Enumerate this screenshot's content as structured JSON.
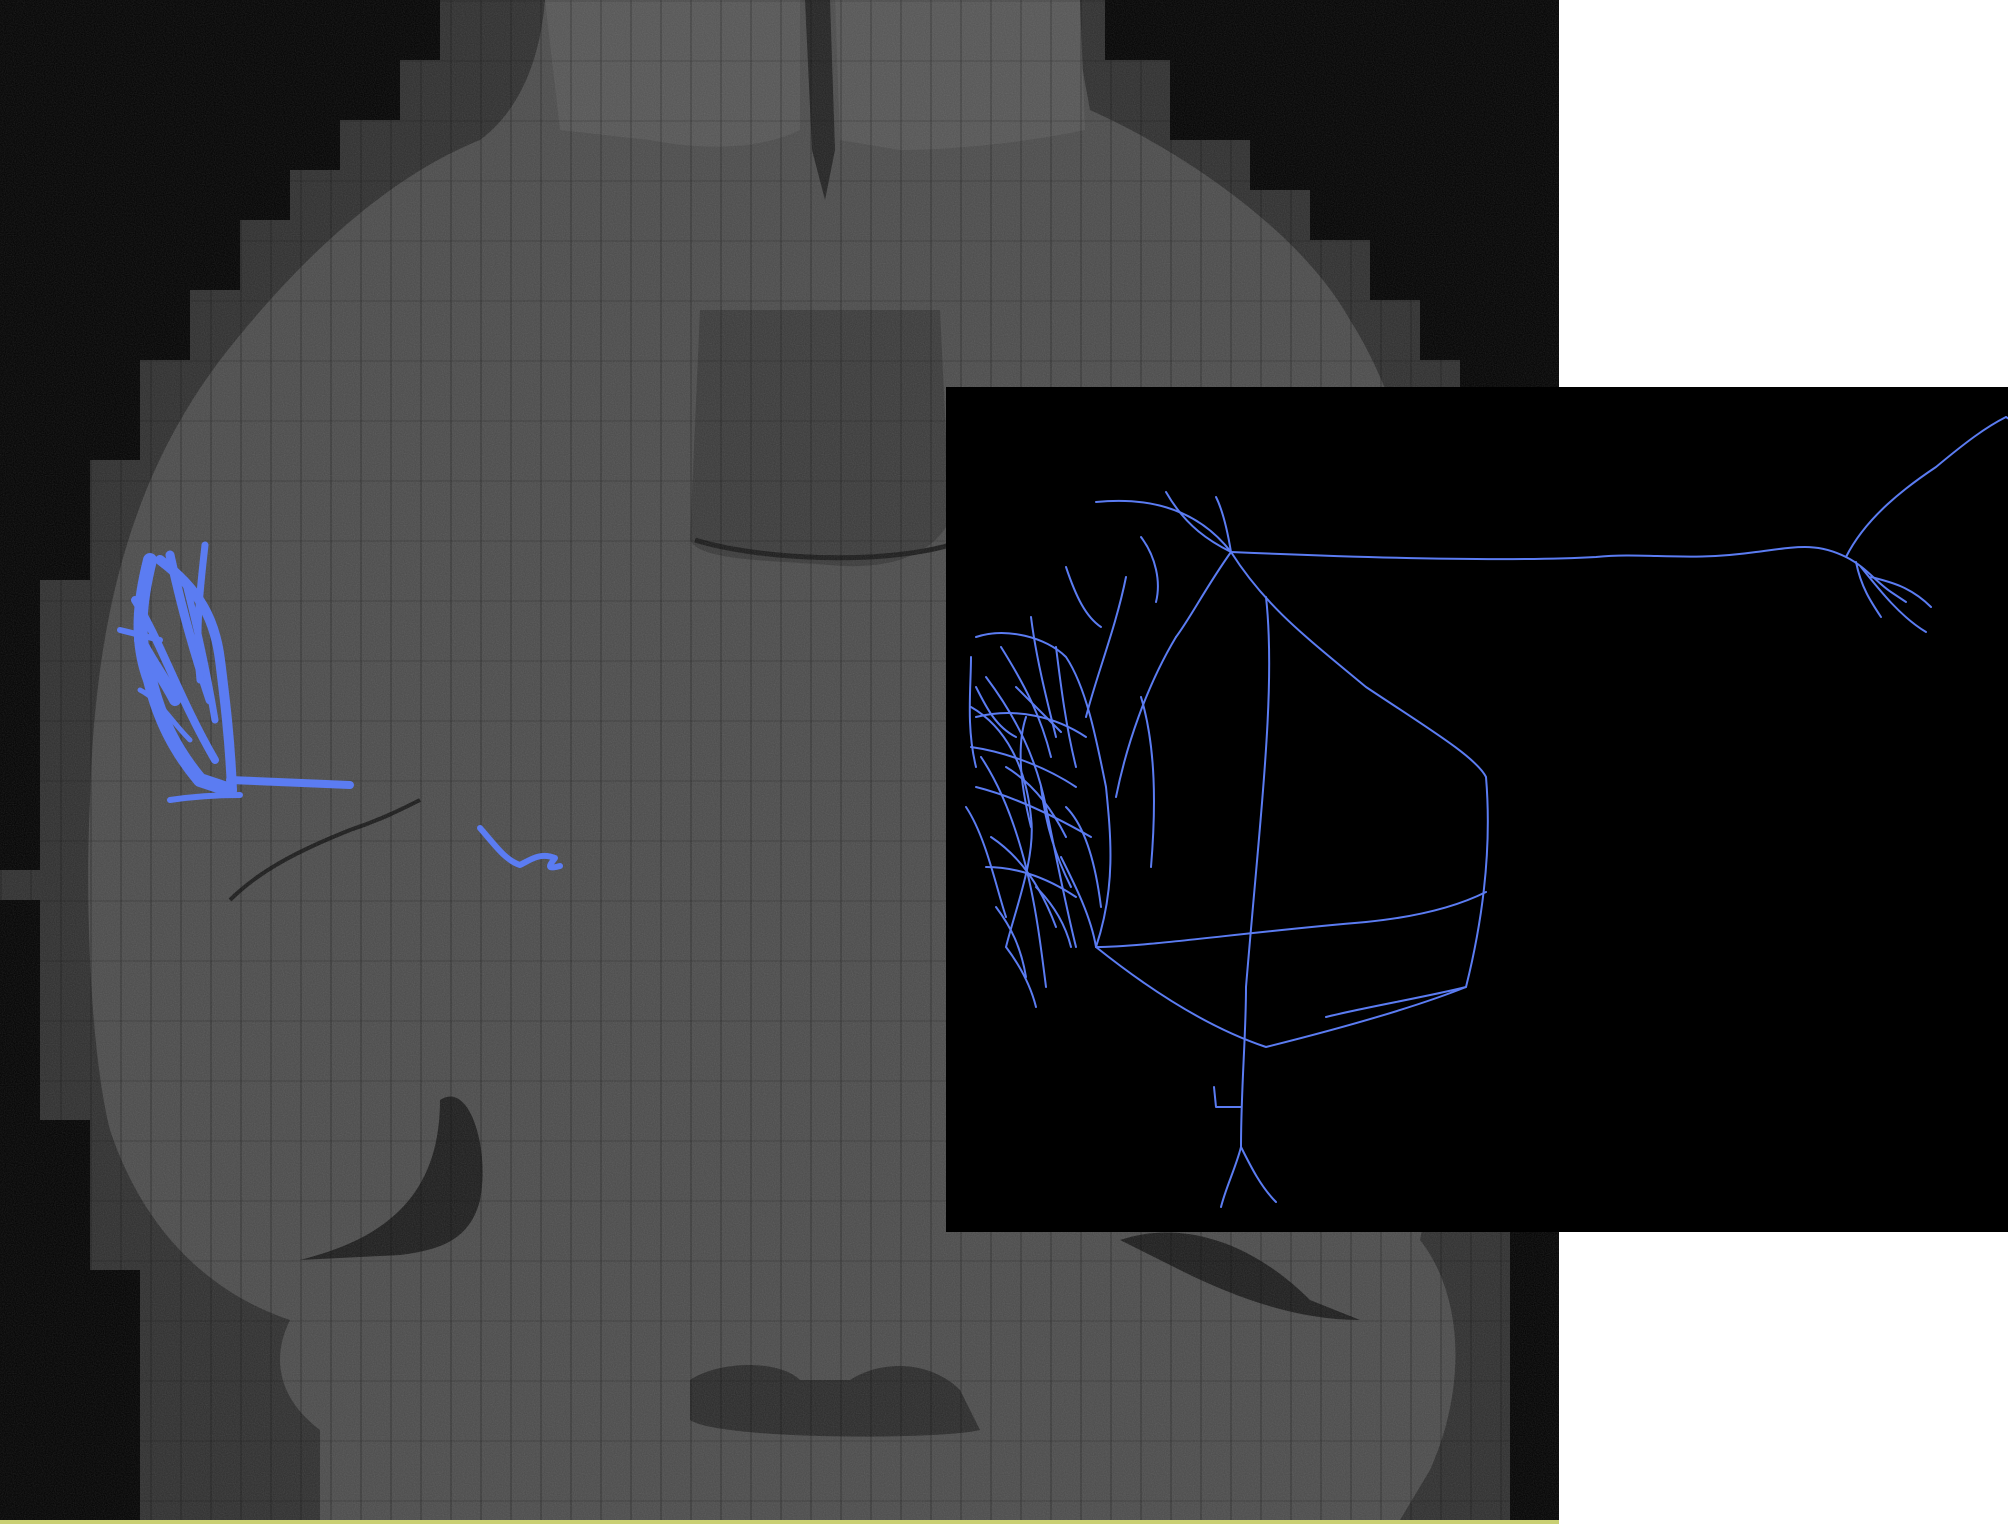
{
  "image": {
    "panels": [
      {
        "name": "brain-section",
        "background": "#000000",
        "tissue": "#4a4a4a",
        "tissue_shadow": "#333333",
        "speckle": "#9a9a9a"
      },
      {
        "name": "neuron-reconstruction-inset",
        "background": "#000000",
        "trace": "#5b7cf2"
      }
    ],
    "trace_color": "#5b7cf2",
    "edge_line_color": "#c9cf73"
  }
}
